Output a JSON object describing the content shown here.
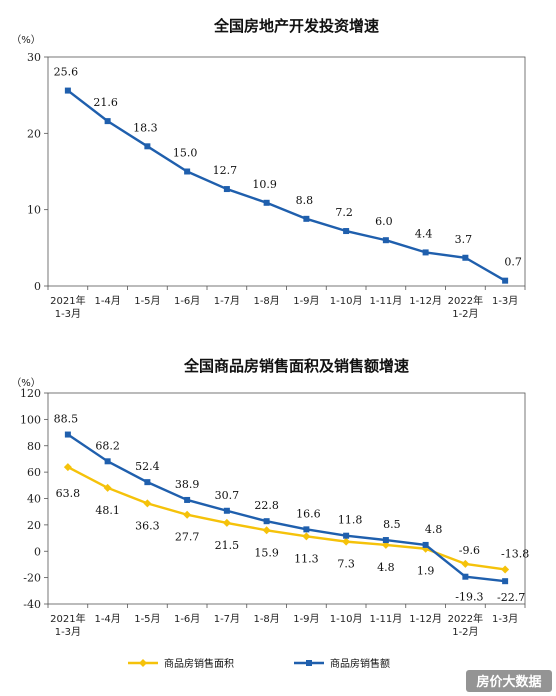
{
  "chart_data": [
    {
      "type": "line",
      "title": "全国房地产开发投资增速",
      "ylabel": "（%）",
      "ylim": [
        0,
        30
      ],
      "yticks": [
        0,
        10,
        20,
        30
      ],
      "categories": [
        [
          "2021年",
          "1-3月"
        ],
        [
          "1-4月"
        ],
        [
          "1-5月"
        ],
        [
          "1-6月"
        ],
        [
          "1-7月"
        ],
        [
          "1-8月"
        ],
        [
          "1-9月"
        ],
        [
          "1-10月"
        ],
        [
          "1-11月"
        ],
        [
          "1-12月"
        ],
        [
          "2022年",
          "1-2月"
        ],
        [
          "1-3月"
        ]
      ],
      "series": [
        {
          "values": [
            25.6,
            21.6,
            18.3,
            15.0,
            12.7,
            10.9,
            8.8,
            7.2,
            6.0,
            4.4,
            3.7,
            0.7
          ],
          "labels": [
            "25.6",
            "21.6",
            "18.3",
            "15.0",
            "12.7",
            "10.9",
            "8.8",
            "7.2",
            "6.0",
            "4.4",
            "3.7",
            "0.7"
          ],
          "color": "#1f5fad",
          "marker": "square"
        }
      ],
      "grid": false
    },
    {
      "type": "line",
      "title": "全国商品房销售面积及销售额增速",
      "ylabel": "（%）",
      "ylim": [
        -40,
        120
      ],
      "yticks": [
        -40,
        -20,
        0,
        20,
        40,
        60,
        80,
        100,
        120
      ],
      "categories": [
        [
          "2021年",
          "1-3月"
        ],
        [
          "1-4月"
        ],
        [
          "1-5月"
        ],
        [
          "1-6月"
        ],
        [
          "1-7月"
        ],
        [
          "1-8月"
        ],
        [
          "1-9月"
        ],
        [
          "1-10月"
        ],
        [
          "1-11月"
        ],
        [
          "1-12月"
        ],
        [
          "2022年",
          "1-2月"
        ],
        [
          "1-3月"
        ]
      ],
      "series": [
        {
          "name": "商品房销售面积",
          "values": [
            63.8,
            48.1,
            36.3,
            27.7,
            21.5,
            15.9,
            11.3,
            7.3,
            4.8,
            1.9,
            -9.6,
            -13.8
          ],
          "labels": [
            "63.8",
            "48.1",
            "36.3",
            "27.7",
            "21.5",
            "15.9",
            "11.3",
            "7.3",
            "4.8",
            "1.9",
            "-9.6",
            "-13.8"
          ],
          "color": "#f5c20a",
          "marker": "diamond"
        },
        {
          "name": "商品房销售额",
          "values": [
            88.5,
            68.2,
            52.4,
            38.9,
            30.7,
            22.8,
            16.6,
            11.8,
            8.5,
            4.8,
            -19.3,
            -22.7
          ],
          "labels": [
            "88.5",
            "68.2",
            "52.4",
            "38.9",
            "30.7",
            "22.8",
            "16.6",
            "11.8",
            "8.5",
            "4.8",
            "-19.3",
            "-22.7"
          ],
          "color": "#1f5fad",
          "marker": "square"
        }
      ],
      "legend": "bottom",
      "grid": false
    }
  ],
  "watermark": "房价大数据"
}
